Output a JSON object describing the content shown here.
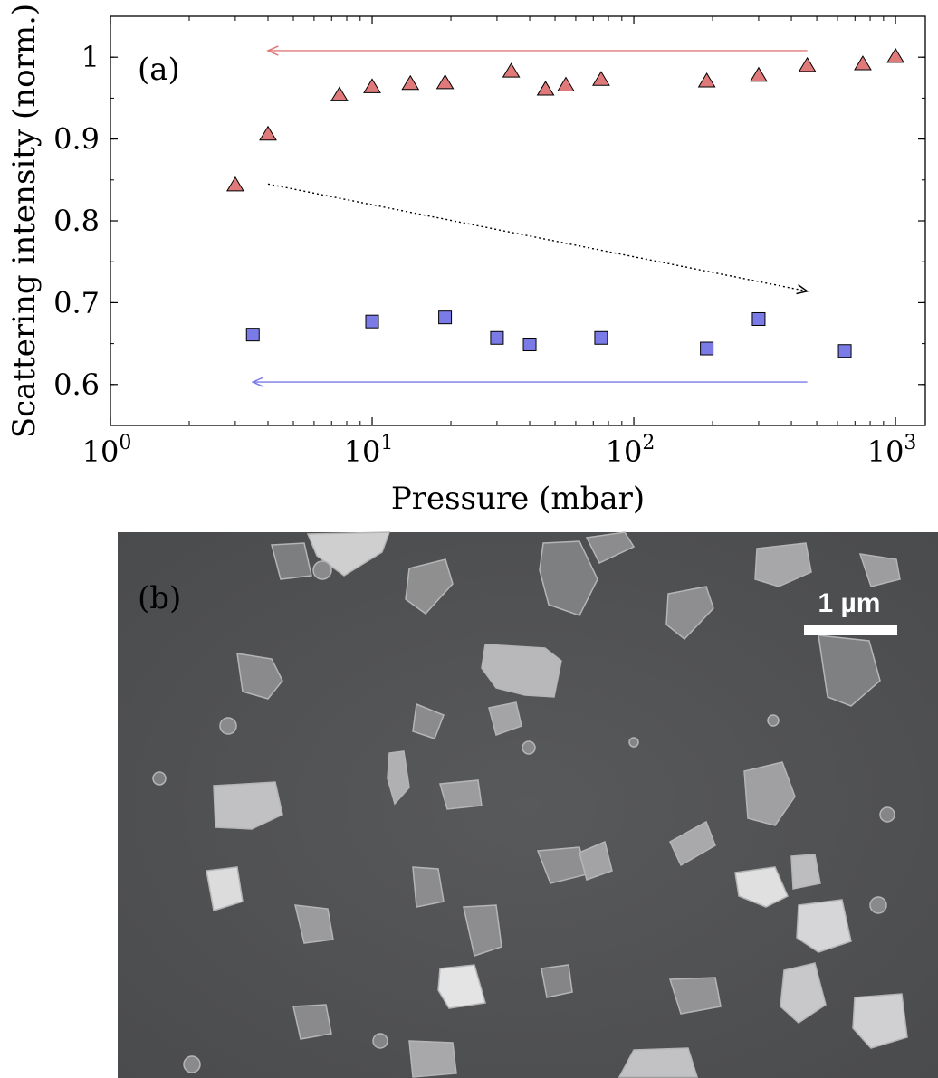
{
  "chart_data": {
    "type": "scatter",
    "panel_label": "(a)",
    "xlabel": "Pressure (mbar)",
    "ylabel": "Scattering intensity (norm.)",
    "xscale": "log",
    "xlim": [
      1,
      1300
    ],
    "ylim": [
      0.55,
      1.05
    ],
    "xticks": [
      {
        "value": 1,
        "base": "10",
        "exp": "0"
      },
      {
        "value": 10,
        "base": "10",
        "exp": "1"
      },
      {
        "value": 100,
        "base": "10",
        "exp": "2"
      },
      {
        "value": 1000,
        "base": "10",
        "exp": "3"
      }
    ],
    "yticks": [
      {
        "value": 0.6,
        "label": "0.6"
      },
      {
        "value": 0.7,
        "label": "0.7"
      },
      {
        "value": 0.8,
        "label": "0.8"
      },
      {
        "value": 0.9,
        "label": "0.9"
      },
      {
        "value": 1.0,
        "label": "1"
      }
    ],
    "series": [
      {
        "name": "triangles (red)",
        "marker": "triangle",
        "color": "#e07a7a",
        "x": [
          3,
          4,
          7.5,
          10,
          14,
          19,
          34,
          46,
          55,
          75,
          190,
          300,
          460,
          750,
          1000
        ],
        "y": [
          0.843,
          0.905,
          0.953,
          0.963,
          0.967,
          0.968,
          0.982,
          0.96,
          0.965,
          0.972,
          0.97,
          0.977,
          0.989,
          0.991,
          1.0
        ]
      },
      {
        "name": "squares (blue)",
        "marker": "square",
        "color": "#7b7be8",
        "x": [
          3.5,
          10,
          19,
          30,
          40,
          75,
          190,
          300,
          640
        ],
        "y": [
          0.661,
          0.677,
          0.682,
          0.657,
          0.649,
          0.657,
          0.644,
          0.68,
          0.641
        ]
      }
    ],
    "annotations": [
      {
        "kind": "arrow",
        "style": "solid",
        "color": "#e07a7a",
        "from": [
          460,
          1.008
        ],
        "to": [
          4,
          1.008
        ]
      },
      {
        "kind": "arrow",
        "style": "dotted",
        "color": "#000000",
        "from": [
          4,
          0.845
        ],
        "to": [
          460,
          0.714
        ]
      },
      {
        "kind": "arrow",
        "style": "solid",
        "color": "#7b7be8",
        "from": [
          460,
          0.603
        ],
        "to": [
          3.5,
          0.603
        ]
      }
    ]
  },
  "sem_image": {
    "panel_label": "(b)",
    "scale_bar_label": "1 µm"
  }
}
